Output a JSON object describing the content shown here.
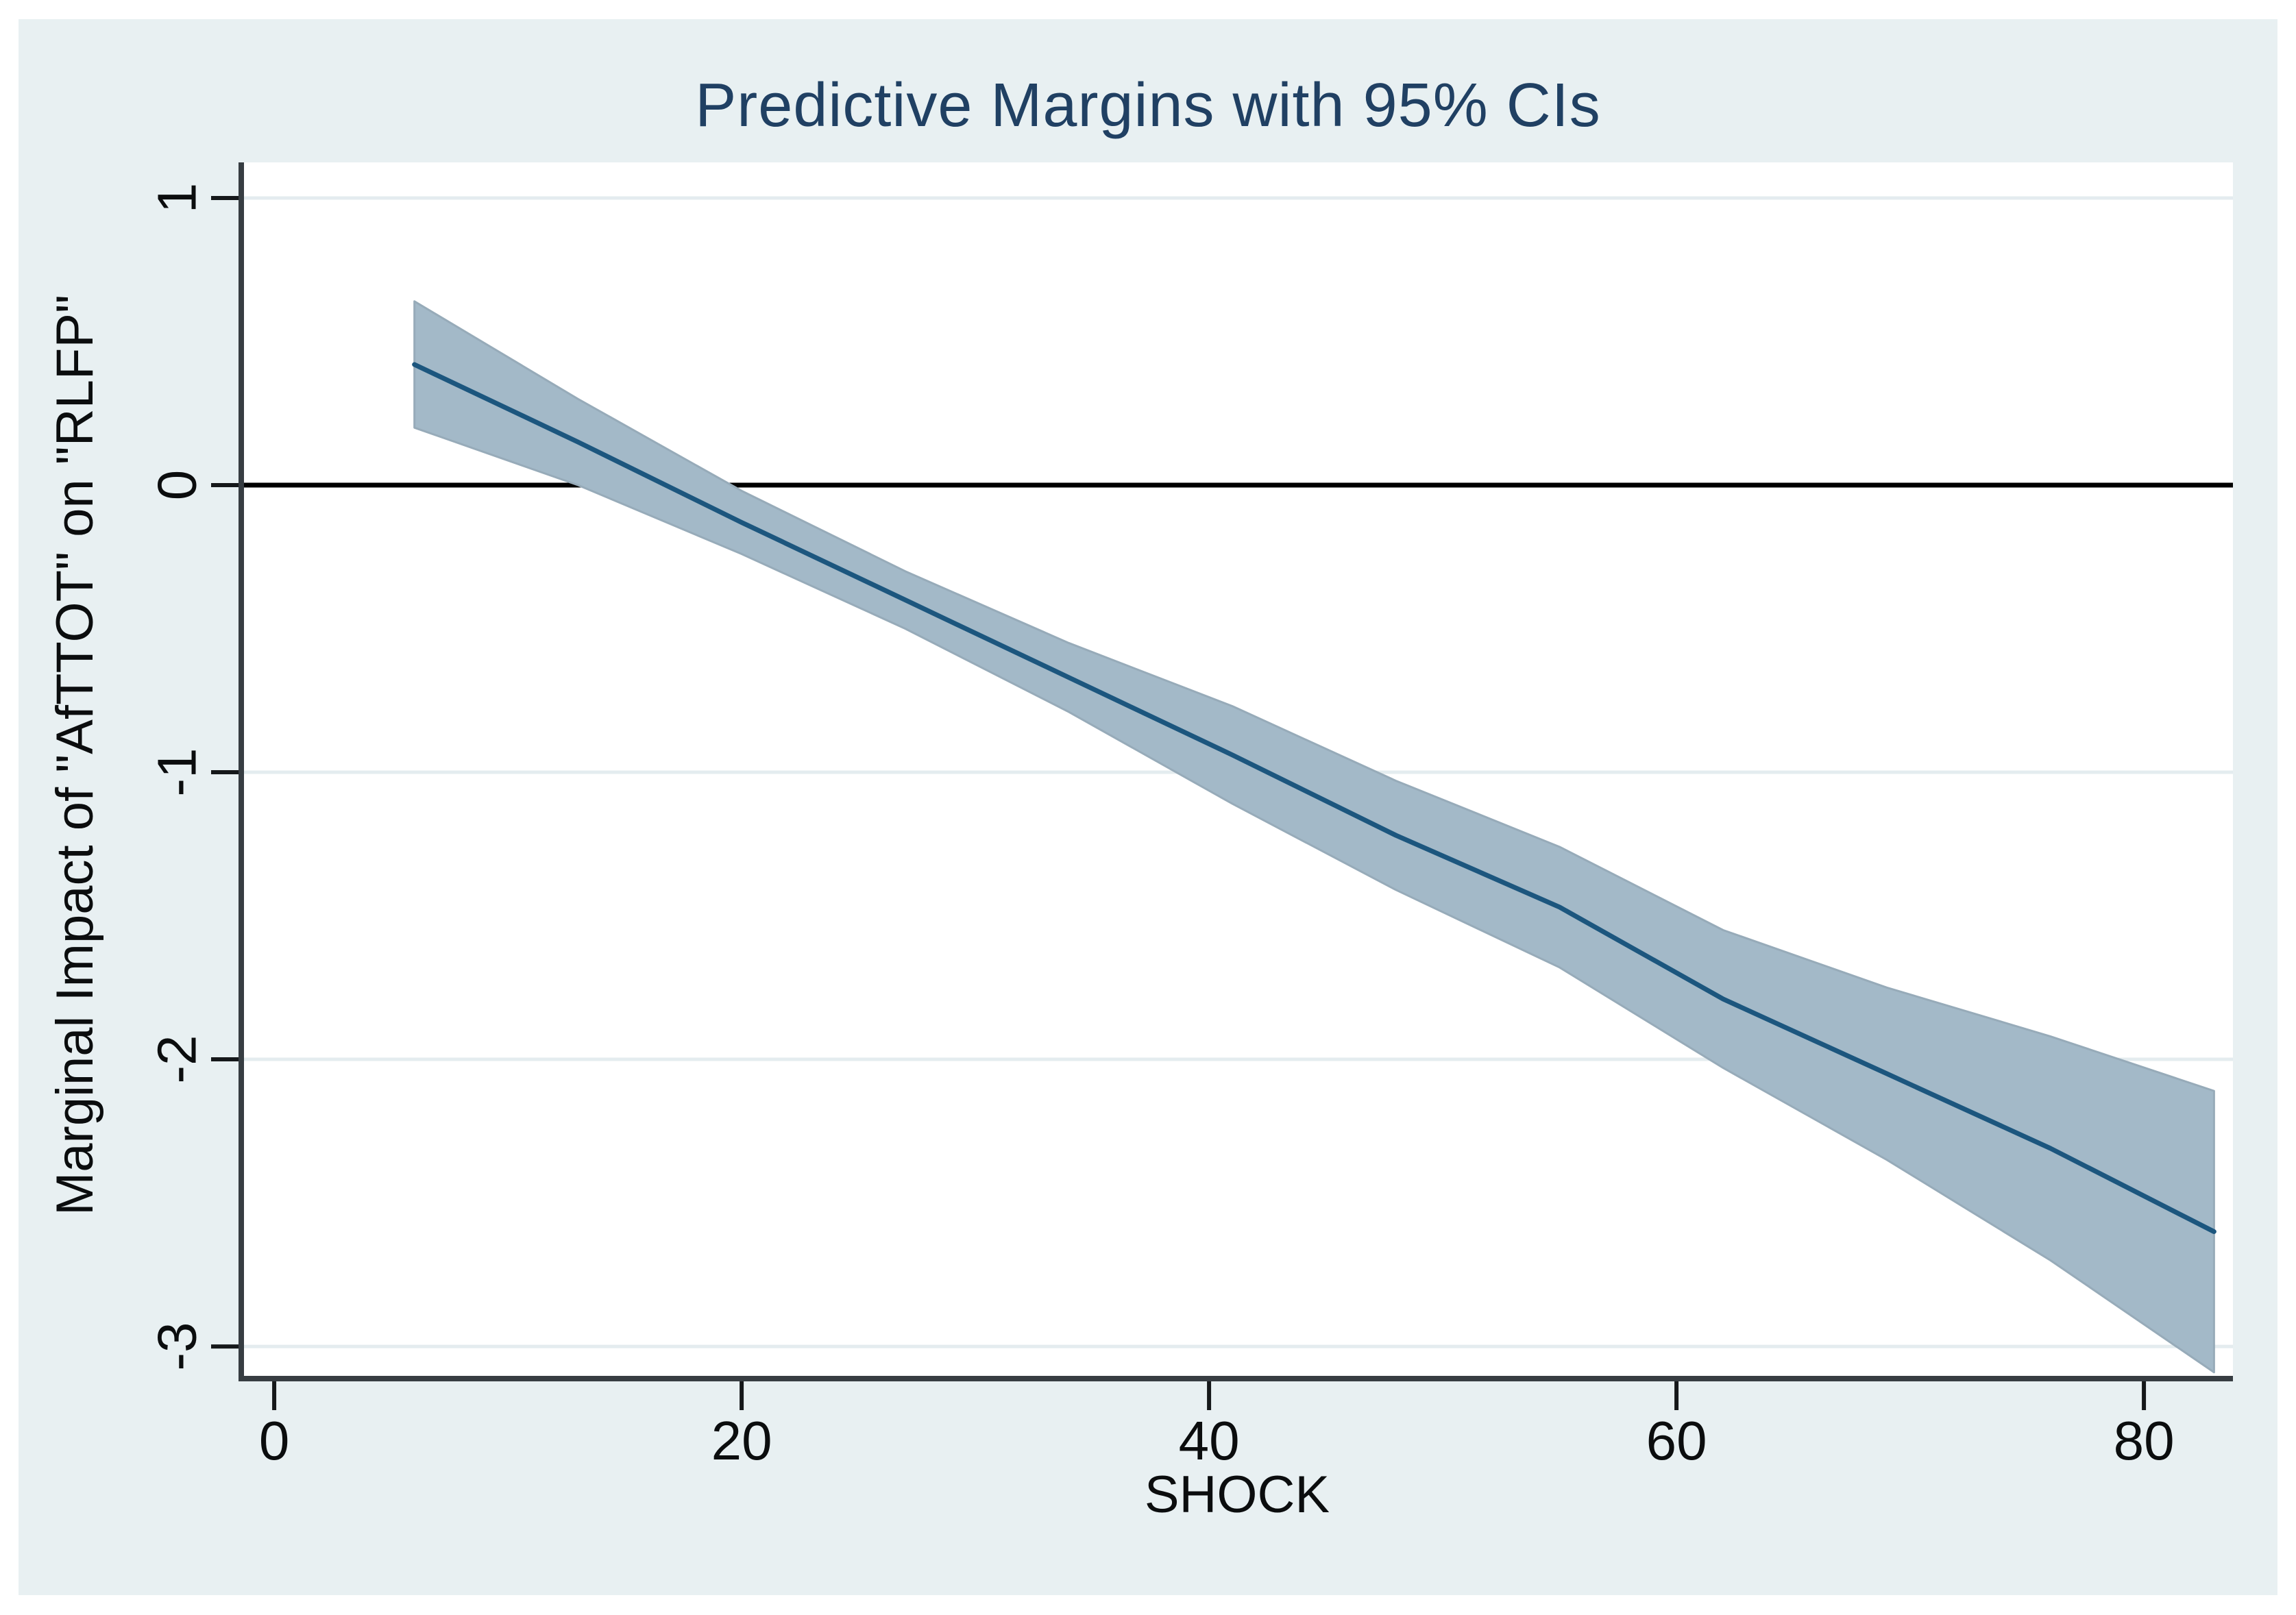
{
  "figure": {
    "canvas_background": "#ffffff",
    "graph_background": "#e8f0f2"
  },
  "chart_data": {
    "type": "line",
    "title": "Predictive Margins with 95% CIs",
    "xlabel": "SHOCK",
    "ylabel": "Marginal Impact of \"AfTTOT\" on \"RLFP\"",
    "x_ticks": [
      0,
      20,
      40,
      60,
      80
    ],
    "y_ticks": [
      1,
      0,
      -1,
      -2,
      -3
    ],
    "xlim": [
      -1.41,
      83.81
    ],
    "ylim": [
      -3.112,
      1.124
    ],
    "grid": true,
    "legend": "none",
    "reference_line_y": 0,
    "x": [
      6,
      13,
      20,
      27,
      34,
      41,
      48,
      55,
      62,
      69,
      76,
      83
    ],
    "series": [
      {
        "name": "Predictive margin",
        "role": "line",
        "values": [
          0.42,
          0.15,
          -0.13,
          -0.4,
          -0.67,
          -0.94,
          -1.22,
          -1.47,
          -1.79,
          -2.05,
          -2.31,
          -2.6
        ]
      },
      {
        "name": "95% CI upper",
        "role": "band-upper",
        "values": [
          0.64,
          0.3,
          -0.02,
          -0.3,
          -0.55,
          -0.77,
          -1.03,
          -1.26,
          -1.55,
          -1.75,
          -1.92,
          -2.11
        ]
      },
      {
        "name": "95% CI lower",
        "role": "band-lower",
        "values": [
          0.2,
          0.0,
          -0.24,
          -0.5,
          -0.79,
          -1.11,
          -1.41,
          -1.68,
          -2.03,
          -2.35,
          -2.7,
          -3.09
        ]
      }
    ],
    "colors": {
      "line": "#1c567e",
      "band_fill": "#a3b9c8",
      "band_edge": "#97abb9",
      "title_text": "#204063",
      "axis": "#373d42",
      "tick": "#15181a",
      "grid": "#e4ecef",
      "zero_line": "#000000",
      "plot_background": "#ffffff"
    }
  }
}
